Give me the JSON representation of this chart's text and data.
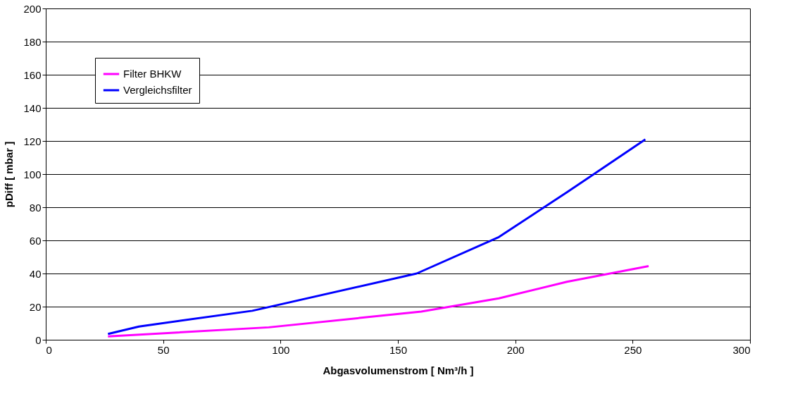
{
  "chart_data": {
    "type": "line",
    "xlabel": "Abgasvolumenstrom [ Nm³/h ]",
    "ylabel": "pDiff [ mbar ]",
    "xlim": [
      0,
      300
    ],
    "xticks": [
      0,
      50,
      100,
      150,
      200,
      250,
      300
    ],
    "ylim": [
      0,
      200
    ],
    "yticks": [
      0,
      20,
      40,
      60,
      80,
      100,
      120,
      140,
      160,
      180,
      200
    ],
    "grid": "y",
    "legend": "top left",
    "marker": "none",
    "line_style": "solid",
    "series": [
      {
        "name": "Filter BHKW",
        "color": "#ff00ff",
        "x": [
          26.5,
          95,
          160,
          193,
          222,
          256.8
        ],
        "values": [
          2,
          7.5,
          17,
          25,
          35,
          44.5
        ]
      },
      {
        "name": "Vergleichsfilter",
        "color": "#0000ff",
        "x": [
          26.5,
          39.7,
          88,
          158,
          193,
          222,
          255.4
        ],
        "values": [
          3.5,
          8,
          17.5,
          40,
          62,
          89,
          121
        ]
      }
    ]
  }
}
